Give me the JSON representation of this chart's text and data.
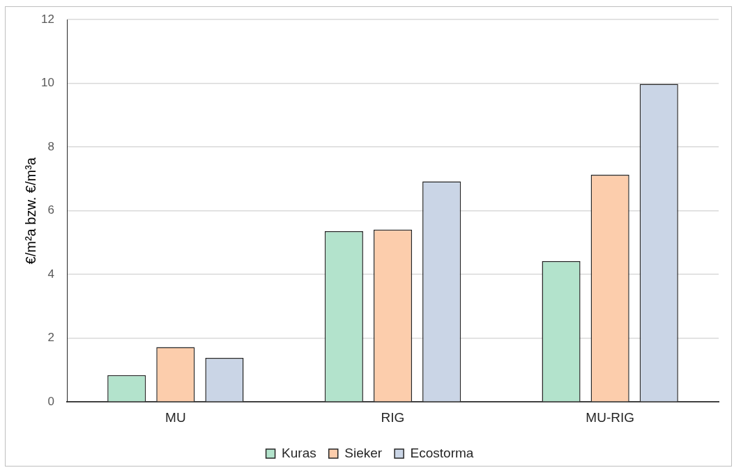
{
  "chart_data": {
    "type": "bar",
    "ylabel": "€/m²a bzw. €/m³a",
    "categories": [
      "MU",
      "RIG",
      "MU-RIG"
    ],
    "series": [
      {
        "name": "Kuras",
        "color": "#b3e3cc",
        "values": [
          0.84,
          5.36,
          4.42
        ]
      },
      {
        "name": "Sieker",
        "color": "#fccdac",
        "values": [
          1.72,
          5.41,
          7.13
        ]
      },
      {
        "name": "Ecostorma",
        "color": "#cad5e6",
        "values": [
          1.38,
          6.92,
          9.98
        ]
      }
    ],
    "ylim": [
      0,
      12
    ],
    "yticks": [
      0,
      2,
      4,
      6,
      8,
      10,
      12
    ],
    "grid": "y",
    "legend": "bottom"
  }
}
